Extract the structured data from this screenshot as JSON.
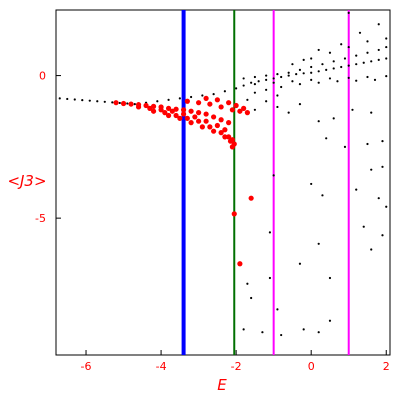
{
  "chart_data": {
    "type": "scatter",
    "title": "",
    "xlabel": "E",
    "ylabel": "<J3>",
    "xlim": [
      -6.8,
      2.1
    ],
    "ylim": [
      -9.8,
      2.3
    ],
    "xticks": [
      -6,
      -4,
      -2,
      0,
      2
    ],
    "yticks": [
      0,
      -5
    ],
    "grid": false,
    "vertical_lines": [
      {
        "x": -3.4,
        "color": "#0000ff"
      },
      {
        "x": -2.05,
        "color": "#007000"
      },
      {
        "x": -1.0,
        "color": "#ff00ff"
      },
      {
        "x": 1.0,
        "color": "#ff00ff"
      }
    ],
    "series": [
      {
        "color": "#000000",
        "points": [
          [
            -6.7,
            -0.8
          ],
          [
            -6.5,
            -0.82
          ],
          [
            -6.3,
            -0.84
          ],
          [
            -6.1,
            -0.86
          ],
          [
            -5.9,
            -0.88
          ],
          [
            -5.7,
            -0.9
          ],
          [
            -5.5,
            -0.92
          ],
          [
            -5.3,
            -0.94
          ],
          [
            -5.1,
            -0.96
          ],
          [
            -4.9,
            -0.98
          ],
          [
            -4.7,
            -1.0
          ],
          [
            -4.4,
            -0.95
          ],
          [
            -4.1,
            -0.9
          ],
          [
            -3.8,
            -0.85
          ],
          [
            -3.5,
            -0.8
          ],
          [
            -3.2,
            -0.75
          ],
          [
            -2.9,
            -0.7
          ],
          [
            -2.6,
            -0.65
          ],
          [
            -2.3,
            -0.55
          ],
          [
            -2.0,
            -0.45
          ],
          [
            -1.8,
            -0.35
          ],
          [
            -1.6,
            -0.25
          ],
          [
            -1.4,
            -0.2
          ],
          [
            -1.2,
            -0.15
          ],
          [
            -1.0,
            -0.1
          ],
          [
            -0.8,
            -0.05
          ],
          [
            -0.6,
            0.0
          ],
          [
            -0.4,
            0.05
          ],
          [
            -0.2,
            0.08
          ],
          [
            0.0,
            0.1
          ],
          [
            0.2,
            0.15
          ],
          [
            0.4,
            0.2
          ],
          [
            0.6,
            0.25
          ],
          [
            0.8,
            0.3
          ],
          [
            1.0,
            0.35
          ],
          [
            1.2,
            0.4
          ],
          [
            1.4,
            0.45
          ],
          [
            1.6,
            0.5
          ],
          [
            1.8,
            0.55
          ],
          [
            2.0,
            0.6
          ],
          [
            -1.8,
            -0.1
          ],
          [
            -1.5,
            -0.05
          ],
          [
            -1.2,
            0.0
          ],
          [
            -0.9,
            0.05
          ],
          [
            -0.6,
            0.1
          ],
          [
            -0.3,
            0.2
          ],
          [
            0.0,
            0.3
          ],
          [
            0.3,
            0.4
          ],
          [
            0.6,
            0.5
          ],
          [
            0.9,
            0.6
          ],
          [
            1.2,
            0.7
          ],
          [
            1.5,
            0.8
          ],
          [
            1.8,
            0.9
          ],
          [
            2.0,
            1.0
          ],
          [
            -1.5,
            -0.3
          ],
          [
            -1.0,
            -0.25
          ],
          [
            -0.5,
            -0.2
          ],
          [
            0.0,
            -0.15
          ],
          [
            0.5,
            -0.1
          ],
          [
            1.0,
            -0.08
          ],
          [
            1.5,
            -0.05
          ],
          [
            2.0,
            -0.02
          ],
          [
            -0.8,
            -0.4
          ],
          [
            -0.3,
            -0.3
          ],
          [
            0.2,
            -0.25
          ],
          [
            0.7,
            -0.2
          ],
          [
            1.2,
            -0.18
          ],
          [
            1.7,
            -0.15
          ],
          [
            -0.5,
            0.4
          ],
          [
            0.0,
            0.6
          ],
          [
            0.5,
            0.8
          ],
          [
            1.0,
            1.0
          ],
          [
            1.5,
            1.2
          ],
          [
            2.0,
            1.3
          ],
          [
            0.8,
            1.1
          ],
          [
            1.3,
            1.5
          ],
          [
            1.8,
            1.8
          ],
          [
            1.0,
            2.2
          ],
          [
            0.2,
            0.9
          ],
          [
            -0.2,
            0.55
          ],
          [
            -1.5,
            -1.2
          ],
          [
            -1.2,
            -0.9
          ],
          [
            -0.9,
            -1.1
          ],
          [
            -0.6,
            -1.3
          ],
          [
            -0.3,
            -1.0
          ],
          [
            0.2,
            -1.6
          ],
          [
            0.6,
            -1.5
          ],
          [
            1.1,
            -1.2
          ],
          [
            1.6,
            -1.3
          ],
          [
            0.4,
            -2.2
          ],
          [
            1.5,
            -2.4
          ],
          [
            1.9,
            -2.3
          ],
          [
            0.9,
            -2.5
          ],
          [
            1.6,
            -3.3
          ],
          [
            1.9,
            -3.2
          ],
          [
            0.0,
            -3.8
          ],
          [
            1.2,
            -4.0
          ],
          [
            -1.0,
            -3.5
          ],
          [
            0.3,
            -4.2
          ],
          [
            1.8,
            -4.3
          ],
          [
            2.0,
            -4.6
          ],
          [
            1.4,
            -5.3
          ],
          [
            1.9,
            -5.6
          ],
          [
            -1.1,
            -5.5
          ],
          [
            0.2,
            -5.9
          ],
          [
            1.6,
            -6.1
          ],
          [
            -0.3,
            -6.6
          ],
          [
            -1.1,
            -7.1
          ],
          [
            -1.7,
            -7.3
          ],
          [
            0.5,
            -7.1
          ],
          [
            -1.6,
            -7.8
          ],
          [
            -0.9,
            -8.2
          ],
          [
            0.5,
            -8.6
          ],
          [
            -1.3,
            -9.0
          ],
          [
            -0.2,
            -8.9
          ],
          [
            -1.8,
            -8.9
          ],
          [
            -0.8,
            -9.1
          ],
          [
            0.2,
            -9.0
          ],
          [
            -1.5,
            -0.6
          ],
          [
            -1.2,
            -0.5
          ],
          [
            -0.9,
            -0.7
          ],
          [
            -1.7,
            -0.85
          ]
        ]
      },
      {
        "color": "#ff0000",
        "points": [
          [
            -5.2,
            -0.95
          ],
          [
            -5.0,
            -0.98
          ],
          [
            -4.8,
            -1.0
          ],
          [
            -4.6,
            -1.02
          ],
          [
            -4.4,
            -1.05
          ],
          [
            -4.2,
            -1.08
          ],
          [
            -4.0,
            -1.1
          ],
          [
            -3.8,
            -1.15
          ],
          [
            -3.6,
            -1.18
          ],
          [
            -3.4,
            -1.2
          ],
          [
            -3.2,
            -1.25
          ],
          [
            -3.0,
            -1.3
          ],
          [
            -2.8,
            -1.35
          ],
          [
            -2.6,
            -1.45
          ],
          [
            -2.4,
            -1.55
          ],
          [
            -2.2,
            -1.65
          ],
          [
            -4.6,
            -1.1
          ],
          [
            -4.3,
            -1.15
          ],
          [
            -4.0,
            -1.2
          ],
          [
            -3.7,
            -1.25
          ],
          [
            -3.4,
            -1.35
          ],
          [
            -3.1,
            -1.45
          ],
          [
            -2.8,
            -1.6
          ],
          [
            -2.5,
            -1.75
          ],
          [
            -2.3,
            -1.9
          ],
          [
            -4.2,
            -1.25
          ],
          [
            -3.9,
            -1.3
          ],
          [
            -3.6,
            -1.4
          ],
          [
            -3.3,
            -1.5
          ],
          [
            -3.0,
            -1.6
          ],
          [
            -2.7,
            -1.8
          ],
          [
            -2.4,
            -2.0
          ],
          [
            -2.2,
            -2.15
          ],
          [
            -3.8,
            -1.4
          ],
          [
            -3.5,
            -1.5
          ],
          [
            -3.2,
            -1.65
          ],
          [
            -2.9,
            -1.8
          ],
          [
            -2.6,
            -1.95
          ],
          [
            -2.3,
            -2.15
          ],
          [
            -2.15,
            -2.3
          ],
          [
            -3.3,
            -0.9
          ],
          [
            -3.0,
            -0.95
          ],
          [
            -2.7,
            -1.0
          ],
          [
            -2.4,
            -1.1
          ],
          [
            -2.1,
            -1.2
          ],
          [
            -1.9,
            -1.25
          ],
          [
            -1.7,
            -1.3
          ],
          [
            -2.8,
            -0.8
          ],
          [
            -2.5,
            -0.85
          ],
          [
            -2.2,
            -0.95
          ],
          [
            -2.0,
            -1.05
          ],
          [
            -1.8,
            -1.15
          ],
          [
            -2.1,
            -2.25
          ],
          [
            -2.05,
            -2.4
          ],
          [
            -2.1,
            -2.5
          ],
          [
            -2.05,
            -4.85
          ],
          [
            -1.6,
            -4.3
          ],
          [
            -1.9,
            -6.6
          ]
        ]
      }
    ]
  }
}
